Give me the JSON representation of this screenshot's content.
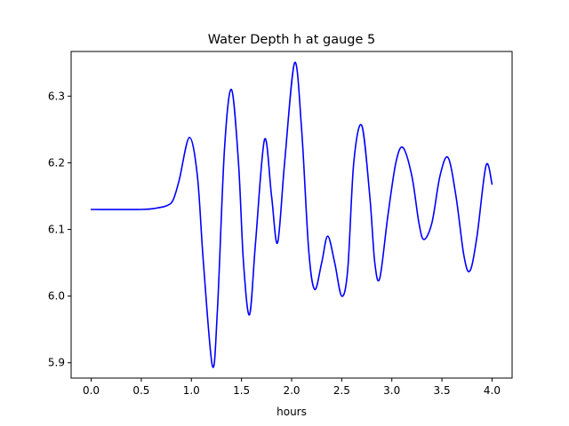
{
  "chart_data": {
    "type": "line",
    "title": "Water Depth h at gauge 5",
    "xlabel": "hours",
    "ylabel": "",
    "xlim": [
      -0.2,
      4.2
    ],
    "ylim": [
      5.877,
      6.367
    ],
    "xticks": [
      0.0,
      0.5,
      1.0,
      1.5,
      2.0,
      2.5,
      3.0,
      3.5,
      4.0
    ],
    "xtick_labels": [
      "0.0",
      "0.5",
      "1.0",
      "1.5",
      "2.0",
      "2.5",
      "3.0",
      "3.5",
      "4.0"
    ],
    "yticks": [
      5.9,
      6.0,
      6.1,
      6.2,
      6.3
    ],
    "ytick_labels": [
      "5.9",
      "6.0",
      "6.1",
      "6.2",
      "6.3"
    ],
    "grid": false,
    "legend": "none",
    "series": [
      {
        "color": "#0000ff",
        "points": [
          [
            0.0,
            6.13
          ],
          [
            0.5,
            6.13
          ],
          [
            0.65,
            6.132
          ],
          [
            0.76,
            6.136
          ],
          [
            0.82,
            6.145
          ],
          [
            0.88,
            6.175
          ],
          [
            0.98,
            6.238
          ],
          [
            1.06,
            6.18
          ],
          [
            1.12,
            6.05
          ],
          [
            1.21,
            5.895
          ],
          [
            1.26,
            5.98
          ],
          [
            1.33,
            6.22
          ],
          [
            1.4,
            6.31
          ],
          [
            1.47,
            6.2
          ],
          [
            1.52,
            6.05
          ],
          [
            1.58,
            5.972
          ],
          [
            1.64,
            6.08
          ],
          [
            1.73,
            6.235
          ],
          [
            1.8,
            6.15
          ],
          [
            1.86,
            6.08
          ],
          [
            1.93,
            6.2
          ],
          [
            2.03,
            6.35
          ],
          [
            2.1,
            6.25
          ],
          [
            2.17,
            6.07
          ],
          [
            2.23,
            6.01
          ],
          [
            2.3,
            6.05
          ],
          [
            2.36,
            6.09
          ],
          [
            2.43,
            6.05
          ],
          [
            2.5,
            6.0
          ],
          [
            2.56,
            6.04
          ],
          [
            2.62,
            6.2
          ],
          [
            2.7,
            6.256
          ],
          [
            2.78,
            6.15
          ],
          [
            2.83,
            6.05
          ],
          [
            2.88,
            6.027
          ],
          [
            2.96,
            6.12
          ],
          [
            3.04,
            6.2
          ],
          [
            3.11,
            6.223
          ],
          [
            3.2,
            6.18
          ],
          [
            3.27,
            6.11
          ],
          [
            3.32,
            6.085
          ],
          [
            3.4,
            6.11
          ],
          [
            3.48,
            6.18
          ],
          [
            3.56,
            6.208
          ],
          [
            3.64,
            6.15
          ],
          [
            3.72,
            6.06
          ],
          [
            3.78,
            6.038
          ],
          [
            3.85,
            6.09
          ],
          [
            3.94,
            6.196
          ],
          [
            4.0,
            6.168
          ]
        ]
      }
    ]
  }
}
